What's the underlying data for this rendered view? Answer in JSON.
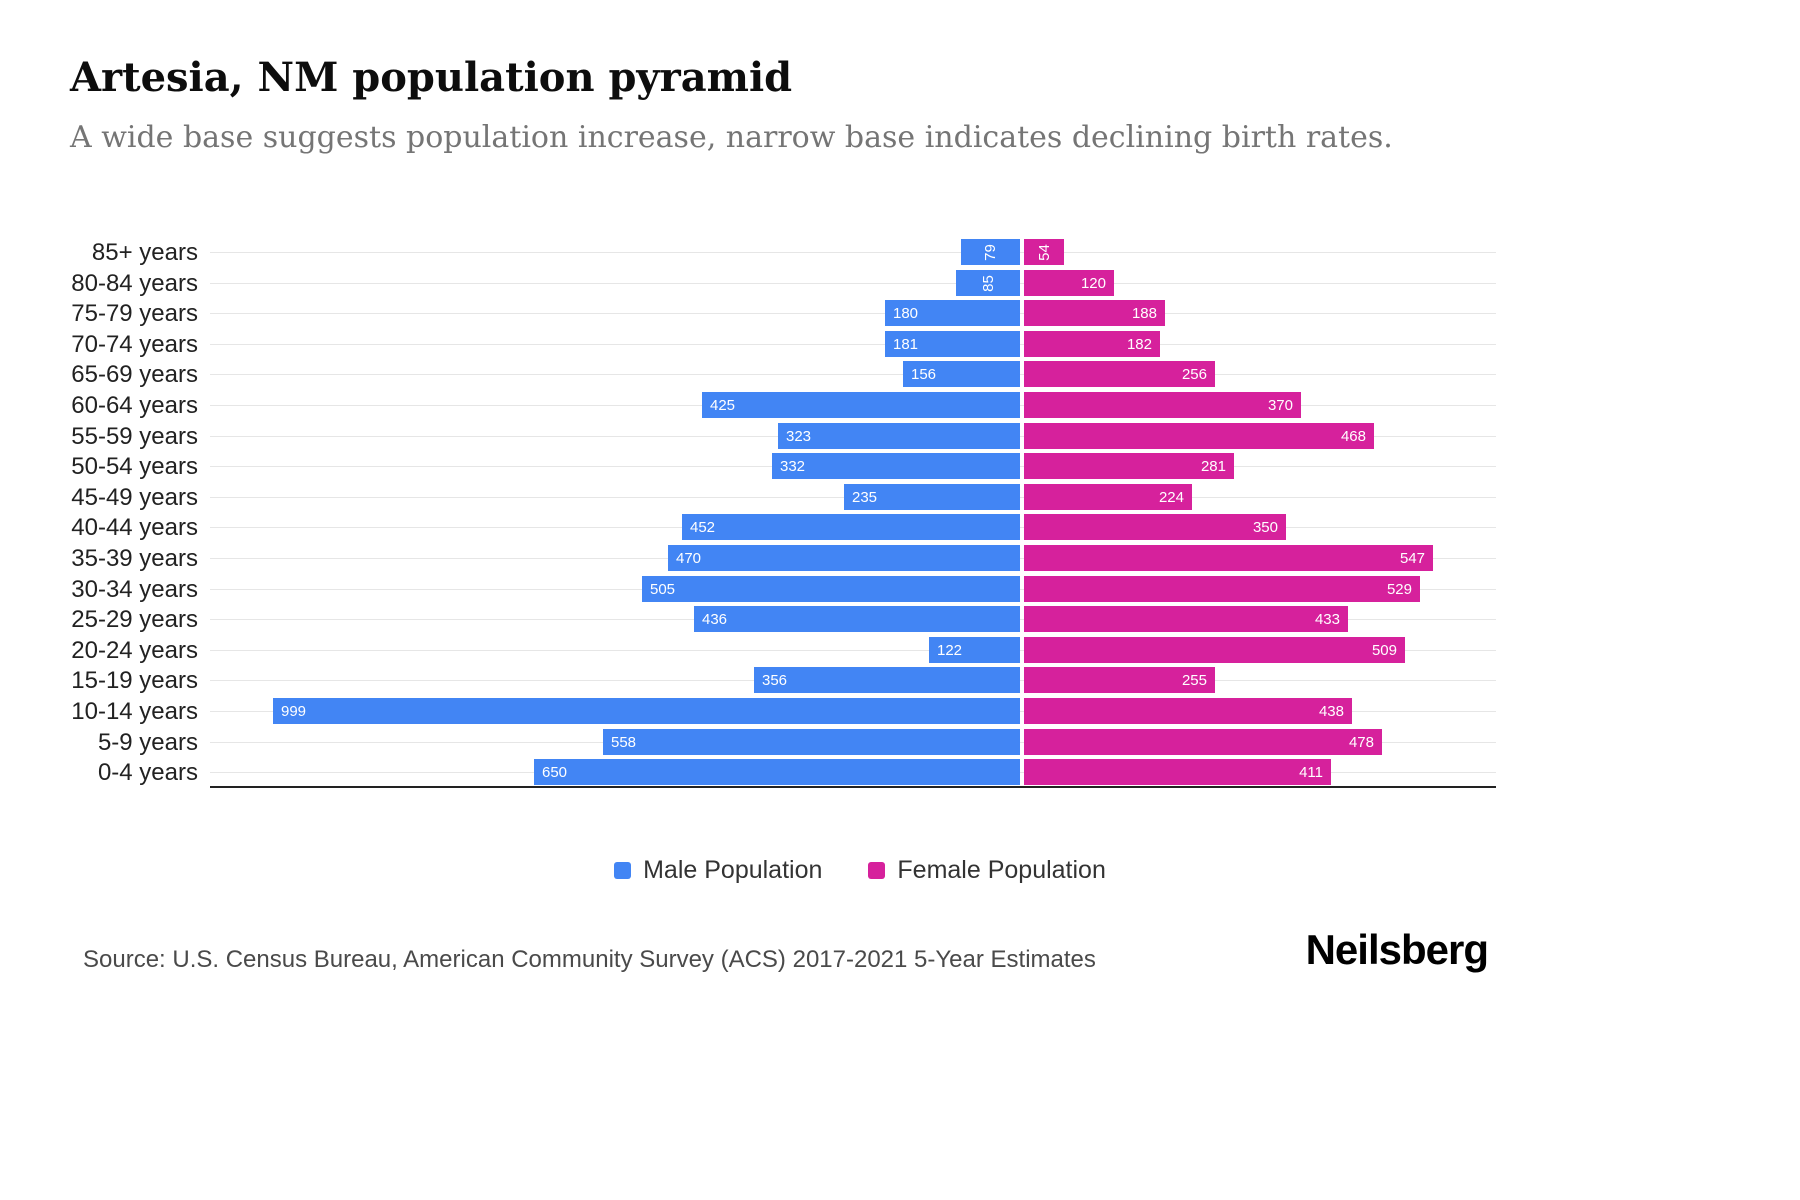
{
  "header": {
    "title": "Artesia, NM population pyramid",
    "subtitle": "A wide base suggests population increase, narrow base indicates declining birth rates."
  },
  "chart_data": {
    "type": "bar",
    "variant": "population-pyramid",
    "orientation": "horizontal",
    "categories": [
      "85+ years",
      "80-84 years",
      "75-79 years",
      "70-74 years",
      "65-69 years",
      "60-64 years",
      "55-59 years",
      "50-54 years",
      "45-49 years",
      "40-44 years",
      "35-39 years",
      "30-34 years",
      "25-29 years",
      "20-24 years",
      "15-19 years",
      "10-14 years",
      "5-9 years",
      "0-4 years"
    ],
    "series": [
      {
        "name": "Male Population",
        "color": "#4285f4",
        "values": [
          79,
          85,
          180,
          181,
          156,
          425,
          323,
          332,
          235,
          452,
          470,
          505,
          436,
          122,
          356,
          999,
          558,
          650
        ]
      },
      {
        "name": "Female Population",
        "color": "#d6219c",
        "values": [
          54,
          120,
          188,
          182,
          256,
          370,
          468,
          281,
          224,
          350,
          547,
          529,
          433,
          509,
          255,
          438,
          478,
          411
        ]
      }
    ],
    "value_labels": "inside-bar-ends, white, rotated vertically when value < 100",
    "grid": "horizontal light gridlines per category row",
    "legend_position": "bottom-center"
  },
  "legend": {
    "items": [
      {
        "label": "Male Population",
        "color": "#4285f4"
      },
      {
        "label": "Female Population",
        "color": "#d6219c"
      }
    ]
  },
  "footer": {
    "source": "Source: U.S. Census Bureau, American Community Survey (ACS) 2017-2021 5-Year Estimates",
    "logo": "Neilsberg"
  }
}
